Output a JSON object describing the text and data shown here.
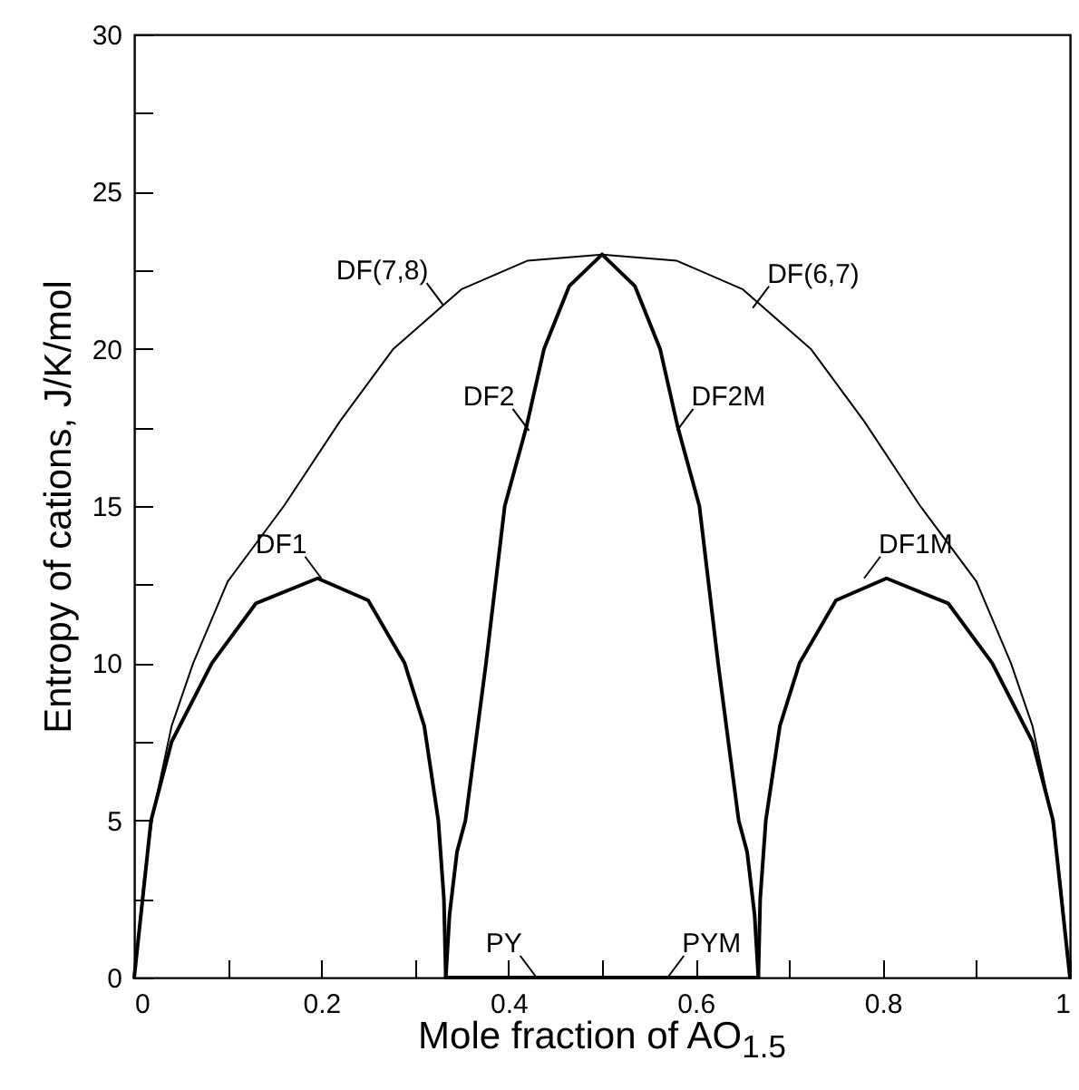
{
  "chart_data": {
    "type": "line",
    "xlabel": "Mole fraction of AO$_{1.5}$",
    "ylabel": "Entropy of cations, J/K/mol",
    "xlim": [
      0,
      1
    ],
    "ylim": [
      0,
      30
    ],
    "xticks": [
      0,
      {
        "value": 0.1,
        "label": null
      },
      0.2,
      {
        "value": 0.3,
        "label": null
      },
      0.4,
      {
        "value": 0.5,
        "label": null
      },
      0.6,
      {
        "value": 0.7,
        "label": null
      },
      0.8,
      {
        "value": 0.9,
        "label": null
      },
      1
    ],
    "yticks": [
      0,
      {
        "value": 2.5,
        "label": null
      },
      5,
      {
        "value": 7.5,
        "label": null
      },
      10,
      {
        "value": 12.5,
        "label": null
      },
      15,
      {
        "value": 17.5,
        "label": null
      },
      20,
      {
        "value": 22.5,
        "label": null
      },
      25,
      {
        "value": 27.5,
        "label": null
      },
      30
    ],
    "grid": false,
    "marker": "none",
    "line_style": "solid",
    "series": [
      {
        "color": "#000000",
        "x": [
          0,
          0.01,
          0.02,
          0.04,
          0.063,
          0.1,
          0.16,
          0.22,
          0.277,
          0.35,
          0.42,
          0.5,
          0.58,
          0.65,
          0.723,
          0.78,
          0.84,
          0.9,
          0.937,
          0.96,
          0.98,
          0.99,
          1
        ],
        "values": [
          0,
          3,
          5.2,
          8,
          10,
          12.6,
          15,
          17.7,
          20,
          21.9,
          22.8,
          23,
          22.8,
          21.9,
          20,
          17.7,
          15,
          12.6,
          10,
          8,
          5.2,
          3,
          0
        ]
      },
      {
        "color": "#000000",
        "x": [
          0,
          0.018,
          0.04,
          0.083,
          0.13,
          0.196,
          0.25,
          0.289,
          0.31,
          0.325,
          0.331,
          0.333
        ],
        "values": [
          0,
          5,
          7.5,
          10,
          11.9,
          12.7,
          12,
          10,
          8,
          5,
          2.5,
          0
        ]
      },
      {
        "color": "#000000",
        "x": [
          0.333,
          0.337,
          0.345,
          0.354,
          0.376,
          0.396,
          0.419,
          0.438,
          0.465,
          0.5
        ],
        "values": [
          0,
          2,
          4,
          5,
          10,
          15,
          17.5,
          20,
          22,
          23
        ]
      },
      {
        "color": "#000000",
        "x": [
          0.333,
          0.43,
          0.57,
          0.667
        ],
        "values": [
          0,
          0,
          0,
          0
        ]
      },
      {
        "color": "#000000",
        "x": [
          0.5,
          0.535,
          0.562,
          0.581,
          0.604,
          0.624,
          0.646,
          0.655,
          0.663,
          0.667
        ],
        "values": [
          23,
          22,
          20,
          17.5,
          15,
          10,
          5,
          4,
          2,
          0
        ]
      },
      {
        "color": "#000000",
        "x": [
          0.667,
          0.669,
          0.675,
          0.69,
          0.711,
          0.75,
          0.804,
          0.87,
          0.917,
          0.96,
          0.982,
          1
        ],
        "values": [
          0,
          2.5,
          5,
          8,
          10,
          12,
          12.7,
          11.9,
          10,
          7.5,
          5,
          0
        ]
      }
    ],
    "annotations": [
      {
        "text": "DF(7,8)",
        "x": 0.33,
        "y": 21.4
      },
      {
        "text": "DF2",
        "x": 0.422,
        "y": 17.4
      },
      {
        "text": "DF1",
        "x": 0.2,
        "y": 12.7
      },
      {
        "text": "PY",
        "x": 0.43,
        "y": 0
      },
      {
        "text": "DF(6,7)",
        "x": 0.661,
        "y": 21.3
      },
      {
        "text": "DF2M",
        "x": 0.58,
        "y": 17.4
      },
      {
        "text": "DF1M",
        "x": 0.78,
        "y": 12.7
      },
      {
        "text": "PYM",
        "x": 0.57,
        "y": 0
      }
    ]
  }
}
